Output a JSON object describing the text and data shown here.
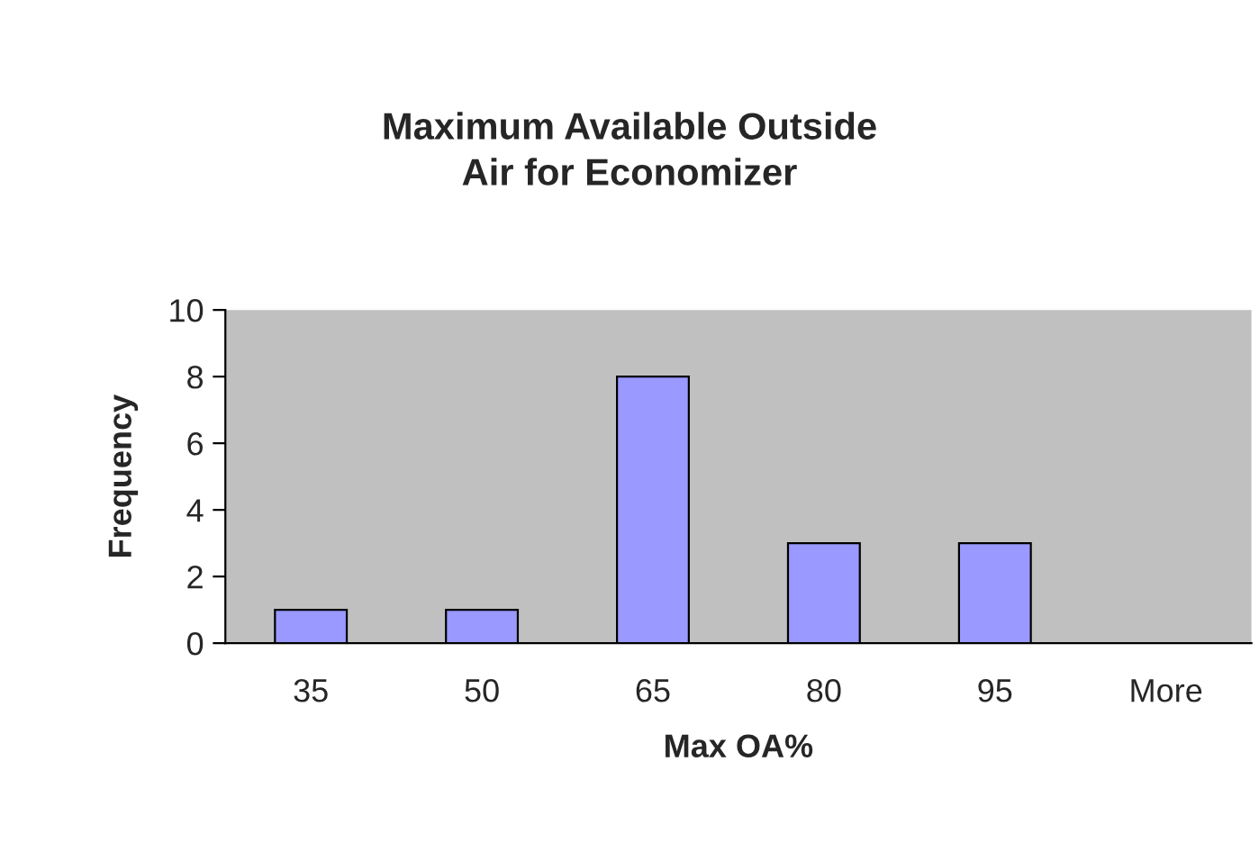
{
  "chart_data": {
    "type": "bar",
    "title": "Maximum Available Outside\nAir for Economizer",
    "xlabel": "Max OA%",
    "ylabel": "Frequency",
    "categories": [
      "35",
      "50",
      "65",
      "80",
      "95",
      "More"
    ],
    "series": [
      {
        "color": "#9999ff",
        "values": [
          1,
          1,
          8,
          3,
          3,
          0
        ]
      }
    ],
    "ylim": [
      0,
      10
    ],
    "yticks": [
      0,
      2,
      4,
      6,
      8,
      10
    ],
    "grid": false,
    "legend": false
  }
}
